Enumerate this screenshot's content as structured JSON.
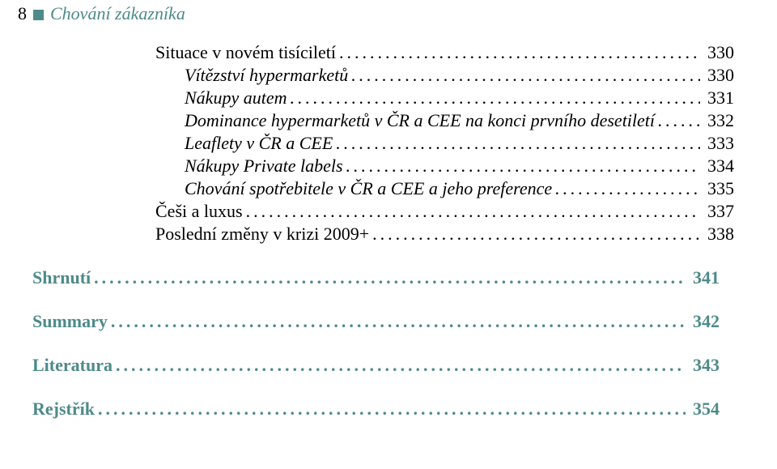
{
  "header": {
    "page_number": "8",
    "title": "Chování zákazníka"
  },
  "toc": [
    {
      "label": "Situace v novém tisíciletí",
      "page": "330",
      "italic": false,
      "indent": 0
    },
    {
      "label": "Vítězství hypermarketů",
      "page": "330",
      "italic": true,
      "indent": 1
    },
    {
      "label": "Nákupy autem",
      "page": "331",
      "italic": true,
      "indent": 1
    },
    {
      "label": "Dominance hypermarketů v ČR a CEE na konci prvního desetiletí",
      "page": "332",
      "italic": true,
      "indent": 1
    },
    {
      "label": "Leaflety v ČR a CEE",
      "page": "333",
      "italic": true,
      "indent": 1
    },
    {
      "label": "Nákupy Private labels",
      "page": "334",
      "italic": true,
      "indent": 1
    },
    {
      "label": "Chování spotřebitele v ČR a CEE a jeho preference",
      "page": "335",
      "italic": true,
      "indent": 1
    },
    {
      "label": "Češi a luxus",
      "page": "337",
      "italic": false,
      "indent": 0
    },
    {
      "label": "Poslední změny v krizi 2009+",
      "page": "338",
      "italic": false,
      "indent": 0
    }
  ],
  "sections": [
    {
      "label": "Shrnutí",
      "page": "341"
    },
    {
      "label": "Summary",
      "page": "342"
    },
    {
      "label": "Literatura",
      "page": "343"
    },
    {
      "label": "Rejstřík",
      "page": "354"
    }
  ],
  "colors": {
    "teal": "#4e8a8a",
    "black": "#000000",
    "background": "#ffffff"
  },
  "dots": "..........................................................................................................................................................................................................."
}
